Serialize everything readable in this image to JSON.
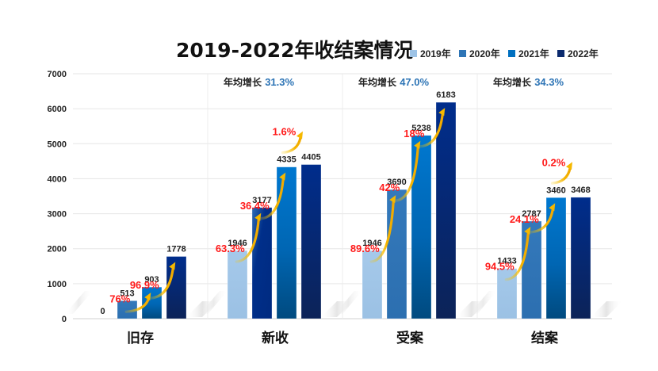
{
  "chart_data": {
    "type": "bar",
    "title": "2019-2022年收结案情况",
    "xlabel": "",
    "ylabel": "",
    "ylim": [
      0,
      7000
    ],
    "yticks": [
      0,
      1000,
      2000,
      3000,
      4000,
      5000,
      6000,
      7000
    ],
    "grid": true,
    "legend_position": "top-right",
    "categories": [
      "旧存",
      "新收",
      "受案",
      "结案"
    ],
    "series": [
      {
        "name": "2019年",
        "color": "#9dc3e6",
        "values": [
          0,
          1946,
          1946,
          1433
        ]
      },
      {
        "name": "2020年",
        "color": "#2e75b6",
        "values": [
          513,
          3177,
          3690,
          2787
        ]
      },
      {
        "name": "2021年",
        "color": "#0070c0",
        "values": [
          903,
          4335,
          5238,
          3460
        ]
      },
      {
        "name": "2022年",
        "color": "#0b2a6e",
        "values": [
          1778,
          4405,
          6183,
          3468
        ]
      }
    ],
    "growth_annotations": [
      {
        "category": "旧存",
        "labels": [
          null,
          "76%",
          "96.9%"
        ]
      },
      {
        "category": "新收",
        "labels": [
          "63.3%",
          "36.4%",
          "1.6%"
        ]
      },
      {
        "category": "受案",
        "labels": [
          "89.6%",
          "42%",
          "18%"
        ]
      },
      {
        "category": "结案",
        "labels": [
          "94.5%",
          "24.1%",
          "0.2%"
        ]
      }
    ],
    "cagr_annotations": [
      {
        "category": "旧存",
        "label": "",
        "value": ""
      },
      {
        "category": "新收",
        "label": "年均增长",
        "value": "31.3%"
      },
      {
        "category": "受案",
        "label": "年均增长",
        "value": "47.0%"
      },
      {
        "category": "结案",
        "label": "年均增长",
        "value": "34.3%"
      }
    ]
  },
  "colors": {
    "growth_text": "#ff1a1a",
    "cagr_value": "#2e75b6",
    "arrow": "#f5b800",
    "grid": "#e6e6e6"
  }
}
